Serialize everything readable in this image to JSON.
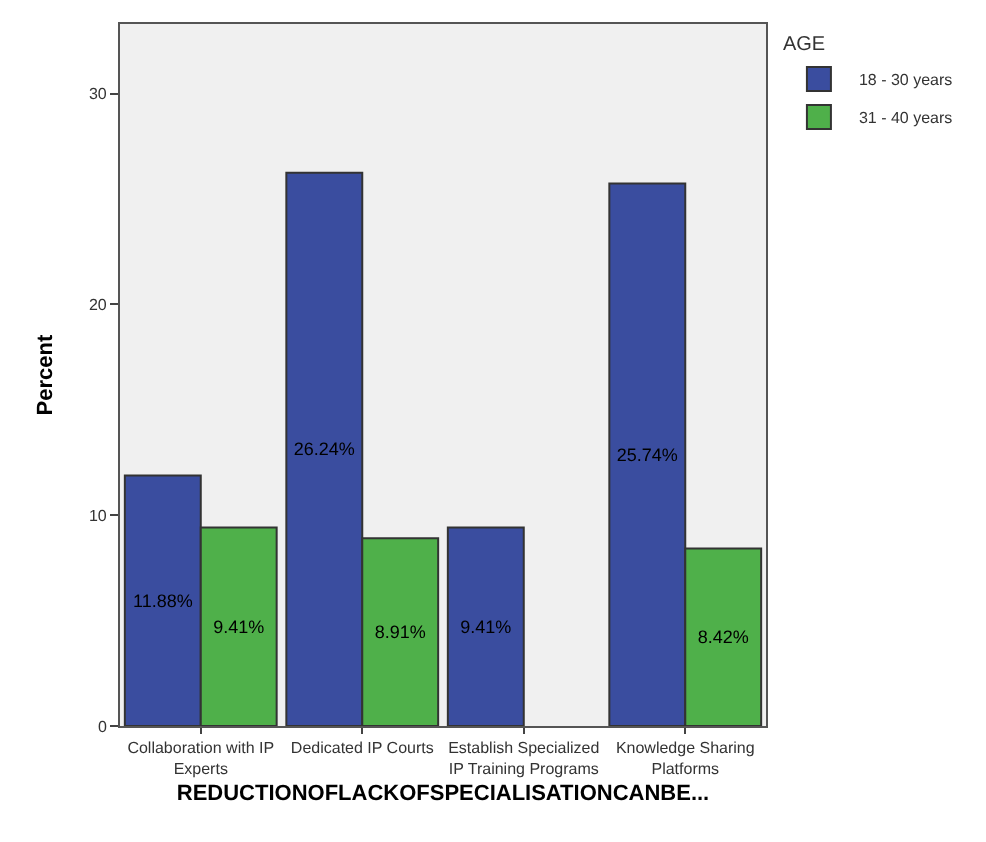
{
  "chart_data": {
    "type": "bar",
    "xlabel": "REDUCTIONOFLACKOFSPECIALISATIONCANBE...",
    "ylabel": "Percent",
    "legend_title": "AGE",
    "categories": [
      "Collaboration with IP Experts",
      "Dedicated IP Courts",
      "Establish Specialized IP Training Programs",
      "Knowledge Sharing Platforms"
    ],
    "series": [
      {
        "name": "18 - 30 years",
        "color": "#3a4d9f",
        "values": [
          11.88,
          26.24,
          9.41,
          25.74
        ],
        "value_labels": [
          "11.88%",
          "26.24%",
          "9.41%",
          "25.74%"
        ]
      },
      {
        "name": "31 - 40 years",
        "color": "#4fb04a",
        "values": [
          9.41,
          8.91,
          null,
          8.42
        ],
        "value_labels": [
          "9.41%",
          "8.91%",
          null,
          "8.42%"
        ]
      }
    ],
    "ylim": [
      0,
      33.3
    ],
    "yticks": [
      0,
      10,
      20,
      30
    ],
    "grid": false,
    "legend": "top right"
  }
}
